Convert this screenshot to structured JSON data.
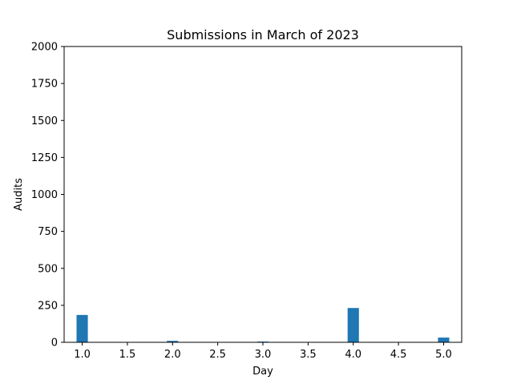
{
  "chart_data": {
    "type": "bar",
    "title": "Submissions in March of 2023",
    "xlabel": "Day",
    "ylabel": "Audits",
    "x": [
      1,
      2,
      3,
      4,
      5
    ],
    "values": [
      185,
      10,
      5,
      232,
      32
    ],
    "xlim": [
      0.8,
      5.2
    ],
    "ylim": [
      0,
      2000
    ],
    "xticks": [
      "1.0",
      "1.5",
      "2.0",
      "2.5",
      "3.0",
      "3.5",
      "4.0",
      "4.5",
      "5.0"
    ],
    "yticks": [
      "0",
      "250",
      "500",
      "750",
      "1000",
      "1250",
      "1500",
      "1750",
      "2000"
    ],
    "bar_color": "#1f77b4",
    "grid": false,
    "legend": "none"
  }
}
